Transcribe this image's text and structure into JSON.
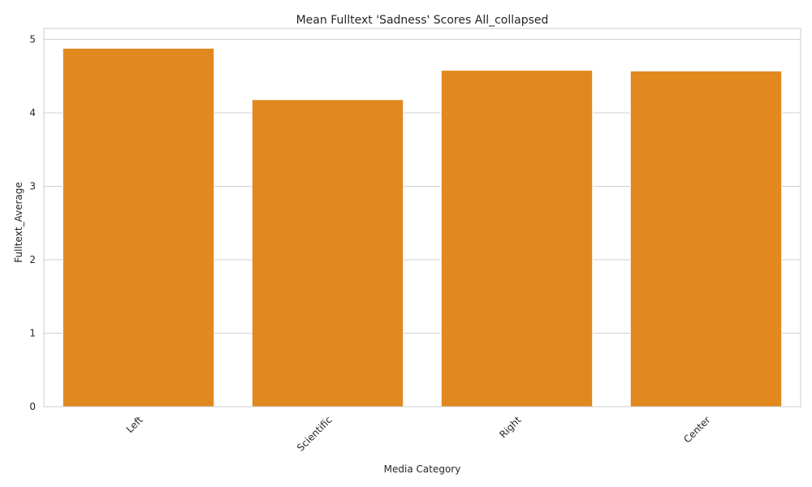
{
  "chart_data": {
    "type": "bar",
    "title": "Mean Fulltext 'Sadness' Scores All_collapsed",
    "xlabel": "Media Category",
    "ylabel": "Fulltext_Average",
    "categories": [
      "Left",
      "Scientific",
      "Right",
      "Center"
    ],
    "values": [
      4.88,
      4.18,
      4.58,
      4.57
    ],
    "ylim": [
      0,
      5.15
    ],
    "yticks": [
      0,
      1,
      2,
      3,
      4,
      5
    ],
    "grid": "horizontal",
    "bar_color": "#e1891f",
    "grid_color": "#d0d0d0",
    "axis_color": "#cccccc"
  }
}
